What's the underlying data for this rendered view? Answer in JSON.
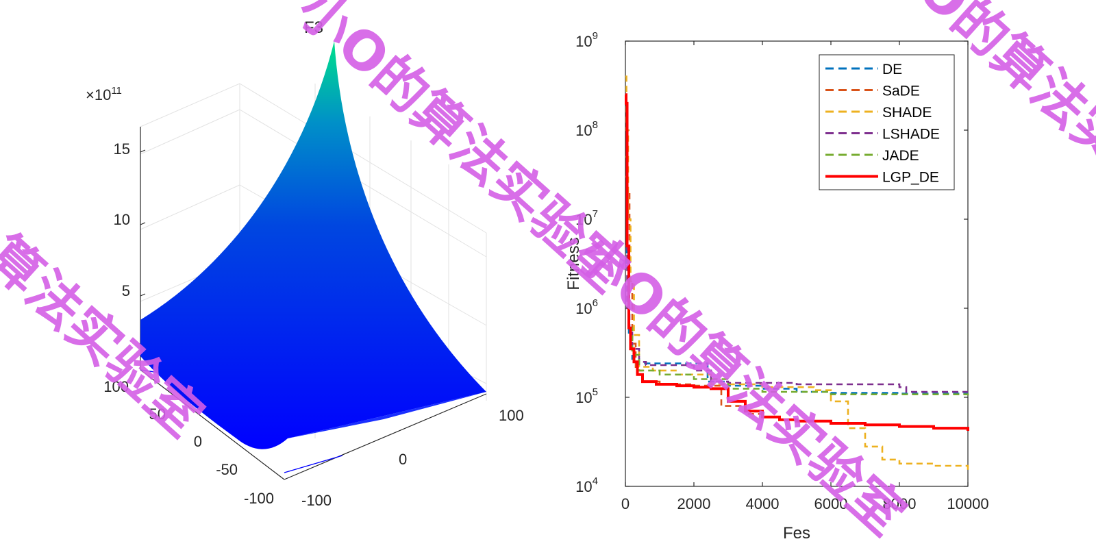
{
  "chart_data": [
    {
      "type": "surface",
      "title": "F3",
      "zscale": "×10^11",
      "z_multiplier_base": "×10",
      "z_multiplier_exp": "11",
      "z_ticks": [
        "5",
        "10",
        "15"
      ],
      "x_ticks": [
        "-100",
        "-50",
        "0",
        "50",
        "100"
      ],
      "y_ticks": [
        "-100",
        "0",
        "100"
      ],
      "xlim": [
        -100,
        100
      ],
      "ylim": [
        -100,
        100
      ],
      "zlim": [
        0,
        17
      ],
      "colormap": [
        "#0000ff",
        "#00e08c"
      ],
      "grid": true
    },
    {
      "type": "line",
      "title": "",
      "xlabel": "Fes",
      "ylabel": "Fitness",
      "xlim": [
        0,
        10000
      ],
      "ylim": [
        10000,
        1000000000
      ],
      "yscale": "log",
      "x_ticks": [
        "0",
        "2000",
        "4000",
        "6000",
        "8000",
        "10000"
      ],
      "y_tick_exps": [
        "4",
        "5",
        "6",
        "7",
        "8",
        "9"
      ],
      "y_tick_base": "10",
      "legend_position": "top-right",
      "series": [
        {
          "name": "DE",
          "color": "#0072bd",
          "style": "dashed",
          "x": [
            0,
            40,
            100,
            200,
            400,
            800,
            1500,
            2300,
            2400,
            3000,
            4000,
            5000,
            6000,
            8000,
            10000
          ],
          "y": [
            30000000,
            3000000,
            500000,
            270000,
            240000,
            240000,
            240000,
            240000,
            150000,
            135000,
            125000,
            115000,
            112000,
            110000,
            110000
          ]
        },
        {
          "name": "SaDE",
          "color": "#d95319",
          "style": "dashed",
          "x": [
            0,
            50,
            120,
            200,
            300,
            500,
            1000,
            2000,
            2800,
            3500,
            4000
          ],
          "y": [
            30000000,
            20000000,
            2000000,
            400000,
            200000,
            150000,
            140000,
            135000,
            80000,
            65000,
            60000
          ]
        },
        {
          "name": "SHADE",
          "color": "#edb120",
          "style": "dashed",
          "x": [
            0,
            30,
            80,
            150,
            250,
            400,
            800,
            1500,
            2500,
            4000,
            5500,
            6000,
            6500,
            7000,
            7500,
            8000,
            9000,
            10000
          ],
          "y": [
            400000000,
            100000000,
            10000000,
            2000000,
            500000,
            220000,
            200000,
            180000,
            140000,
            130000,
            120000,
            90000,
            45000,
            28000,
            20000,
            18000,
            17000,
            14000
          ]
        },
        {
          "name": "LSHADE",
          "color": "#7e2f8e",
          "style": "dashed",
          "x": [
            0,
            50,
            120,
            200,
            400,
            600,
            1000,
            2000,
            2500,
            3000,
            5000,
            8000,
            8200,
            10000
          ],
          "y": [
            5000000,
            1000000,
            600000,
            350000,
            250000,
            230000,
            230000,
            200000,
            150000,
            145000,
            140000,
            130000,
            115000,
            115000
          ]
        },
        {
          "name": "JADE",
          "color": "#77ac30",
          "style": "dashed",
          "x": [
            0,
            40,
            100,
            200,
            400,
            1000,
            2000,
            3000,
            4000,
            6000,
            10000
          ],
          "y": [
            50000000,
            5000000,
            600000,
            300000,
            200000,
            180000,
            160000,
            125000,
            115000,
            108000,
            105000
          ]
        },
        {
          "name": "LGP_DE",
          "color": "#ff0000",
          "style": "solid",
          "x": [
            0,
            20,
            50,
            100,
            150,
            250,
            350,
            500,
            900,
            1500,
            2000,
            2500,
            3000,
            3500,
            4000,
            4500,
            5000,
            6000,
            7000,
            8000,
            9000,
            10000
          ],
          "y": [
            250000000,
            200000000,
            5000000,
            600000,
            350000,
            250000,
            180000,
            150000,
            140000,
            135000,
            130000,
            125000,
            90000,
            70000,
            60000,
            56000,
            54000,
            51000,
            49000,
            47000,
            45000,
            42000
          ]
        }
      ]
    }
  ],
  "watermark": {
    "text_a": "小O的算法实验室",
    "text_b": "O的算法实",
    "text_c": "算法实验室",
    "text_d": "的算法实验室"
  }
}
